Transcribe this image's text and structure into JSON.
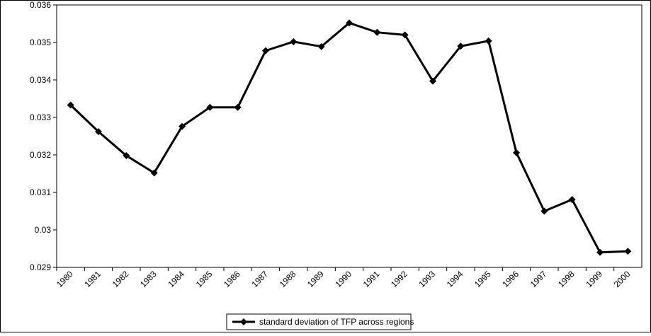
{
  "chart_data": {
    "type": "line",
    "categories": [
      "1980",
      "1981",
      "1982",
      "1983",
      "1984",
      "1985",
      "1986",
      "1987",
      "1988",
      "1989",
      "1990",
      "1991",
      "1992",
      "1993",
      "1994",
      "1995",
      "1996",
      "1997",
      "1998",
      "1999",
      "2000"
    ],
    "series": [
      {
        "name": "standard deviation of TFP across regions",
        "color": "#000000",
        "values": [
          0.03333,
          0.03262,
          0.03198,
          0.03152,
          0.03276,
          0.03327,
          0.03327,
          0.03478,
          0.03502,
          0.03489,
          0.03552,
          0.03527,
          0.0352,
          0.03397,
          0.0349,
          0.03504,
          0.03206,
          0.0305,
          0.03081,
          0.0294,
          0.02943
        ]
      }
    ],
    "ylim": [
      0.029,
      0.036
    ],
    "yticks": [
      0.029,
      0.03,
      0.031,
      0.032,
      0.033,
      0.034,
      0.035,
      0.036
    ],
    "grid": false,
    "legend": "bottom"
  }
}
